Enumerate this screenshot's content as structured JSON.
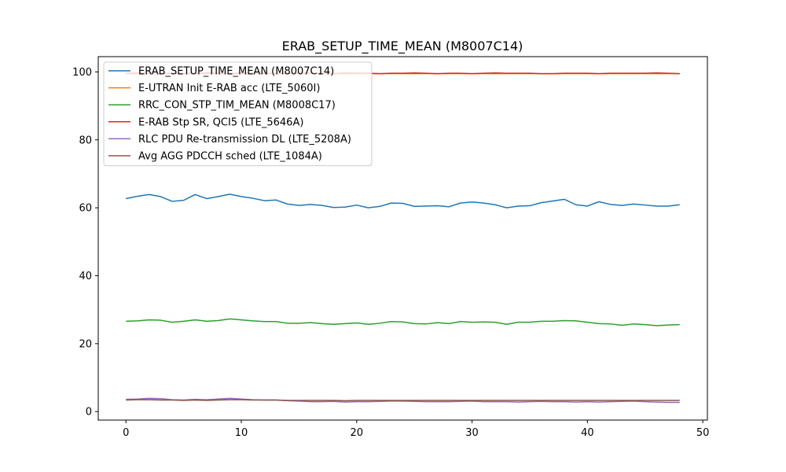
{
  "chart_data": {
    "type": "line",
    "title": "ERAB_SETUP_TIME_MEAN (M8007C14)",
    "xlabel": "",
    "ylabel": "",
    "xlim": [
      -2.4,
      50.4
    ],
    "ylim": [
      -2.5,
      104.5
    ],
    "x_ticks": [
      0,
      10,
      20,
      30,
      40,
      50
    ],
    "y_ticks": [
      0,
      20,
      40,
      60,
      80,
      100
    ],
    "grid": false,
    "legend_position": "top-left",
    "x": [
      0,
      1,
      2,
      3,
      4,
      5,
      6,
      7,
      8,
      9,
      10,
      11,
      12,
      13,
      14,
      15,
      16,
      17,
      18,
      19,
      20,
      21,
      22,
      23,
      24,
      25,
      26,
      27,
      28,
      29,
      30,
      31,
      32,
      33,
      34,
      35,
      36,
      37,
      38,
      39,
      40,
      41,
      42,
      43,
      44,
      45,
      46,
      47,
      48
    ],
    "series": [
      {
        "name": "ERAB_SETUP_TIME_MEAN (M8007C14)",
        "color": "#1f77b4",
        "values": [
          62.7,
          63.4,
          63.9,
          63.3,
          61.9,
          62.2,
          63.9,
          62.7,
          63.3,
          64.0,
          63.3,
          62.8,
          62.1,
          62.3,
          61.1,
          60.7,
          61.0,
          60.7,
          60.1,
          60.2,
          60.8,
          60.0,
          60.4,
          61.4,
          61.3,
          60.4,
          60.5,
          60.6,
          60.3,
          61.4,
          61.7,
          61.4,
          60.9,
          60.0,
          60.5,
          60.6,
          61.5,
          62.0,
          62.5,
          60.9,
          60.5,
          61.8,
          61.0,
          60.7,
          61.1,
          60.8,
          60.5,
          60.5,
          60.9
        ]
      },
      {
        "name": "E-UTRAN Init E-RAB acc (LTE_5060I)",
        "color": "#ff7f0e",
        "values": [
          99.5,
          99.5,
          99.5,
          99.5,
          99.5,
          99.5,
          99.5,
          99.5,
          99.5,
          99.5,
          99.5,
          99.5,
          99.5,
          99.5,
          99.5,
          99.5,
          99.5,
          99.5,
          99.5,
          99.5,
          99.5,
          99.5,
          99.5,
          99.5,
          99.5,
          99.5,
          99.5,
          99.5,
          99.5,
          99.5,
          99.5,
          99.5,
          99.5,
          99.5,
          99.5,
          99.5,
          99.5,
          99.5,
          99.5,
          99.5,
          99.5,
          99.5,
          99.5,
          99.5,
          99.5,
          99.5,
          99.5,
          99.5,
          99.5
        ]
      },
      {
        "name": "RRC_CON_STP_TIM_MEAN (M8008C17)",
        "color": "#2ca02c",
        "values": [
          26.6,
          26.7,
          27.0,
          26.9,
          26.3,
          26.6,
          27.0,
          26.6,
          26.8,
          27.3,
          27.0,
          26.7,
          26.5,
          26.5,
          26.0,
          26.0,
          26.2,
          25.9,
          25.7,
          25.9,
          26.1,
          25.7,
          26.0,
          26.5,
          26.4,
          25.9,
          25.8,
          26.2,
          25.9,
          26.5,
          26.3,
          26.4,
          26.3,
          25.7,
          26.3,
          26.3,
          26.6,
          26.6,
          26.8,
          26.7,
          26.3,
          25.9,
          25.8,
          25.4,
          25.8,
          25.6,
          25.3,
          25.5,
          25.6
        ]
      },
      {
        "name": "E-RAB Stp SR, QCI5 (LTE_5646A)",
        "color": "#d62728",
        "values": [
          99.6,
          99.7,
          99.6,
          99.5,
          99.6,
          99.5,
          99.6,
          99.7,
          99.6,
          99.5,
          99.7,
          99.6,
          99.6,
          99.5,
          99.6,
          99.7,
          99.6,
          99.6,
          99.5,
          99.7,
          99.6,
          99.6,
          99.5,
          99.6,
          99.6,
          99.7,
          99.6,
          99.5,
          99.6,
          99.6,
          99.5,
          99.6,
          99.7,
          99.6,
          99.6,
          99.6,
          99.5,
          99.5,
          99.6,
          99.6,
          99.6,
          99.5,
          99.6,
          99.6,
          99.6,
          99.6,
          99.7,
          99.6,
          99.5
        ]
      },
      {
        "name": "RLC PDU Re-transmission DL (LTE_5208A)",
        "color": "#9467bd",
        "values": [
          3.6,
          3.7,
          3.9,
          3.8,
          3.5,
          3.4,
          3.6,
          3.5,
          3.7,
          3.9,
          3.7,
          3.5,
          3.4,
          3.4,
          3.2,
          3.1,
          2.9,
          2.9,
          3.0,
          2.8,
          2.9,
          2.9,
          3.0,
          3.1,
          3.1,
          3.0,
          2.9,
          2.9,
          2.9,
          3.0,
          3.1,
          2.9,
          2.9,
          2.9,
          2.8,
          2.9,
          3.0,
          2.9,
          2.9,
          2.8,
          2.9,
          2.8,
          2.9,
          3.0,
          3.1,
          2.9,
          2.8,
          2.7,
          2.7
        ]
      },
      {
        "name": "Avg AGG PDCCH sched (LTE_1084A)",
        "color": "#8c564b",
        "values": [
          3.4,
          3.5,
          3.5,
          3.4,
          3.4,
          3.3,
          3.4,
          3.3,
          3.4,
          3.5,
          3.5,
          3.4,
          3.4,
          3.4,
          3.3,
          3.3,
          3.3,
          3.3,
          3.3,
          3.2,
          3.3,
          3.3,
          3.3,
          3.3,
          3.3,
          3.3,
          3.3,
          3.3,
          3.3,
          3.3,
          3.3,
          3.3,
          3.3,
          3.3,
          3.3,
          3.3,
          3.3,
          3.3,
          3.3,
          3.3,
          3.3,
          3.3,
          3.3,
          3.3,
          3.3,
          3.3,
          3.3,
          3.3,
          3.3
        ]
      }
    ]
  }
}
